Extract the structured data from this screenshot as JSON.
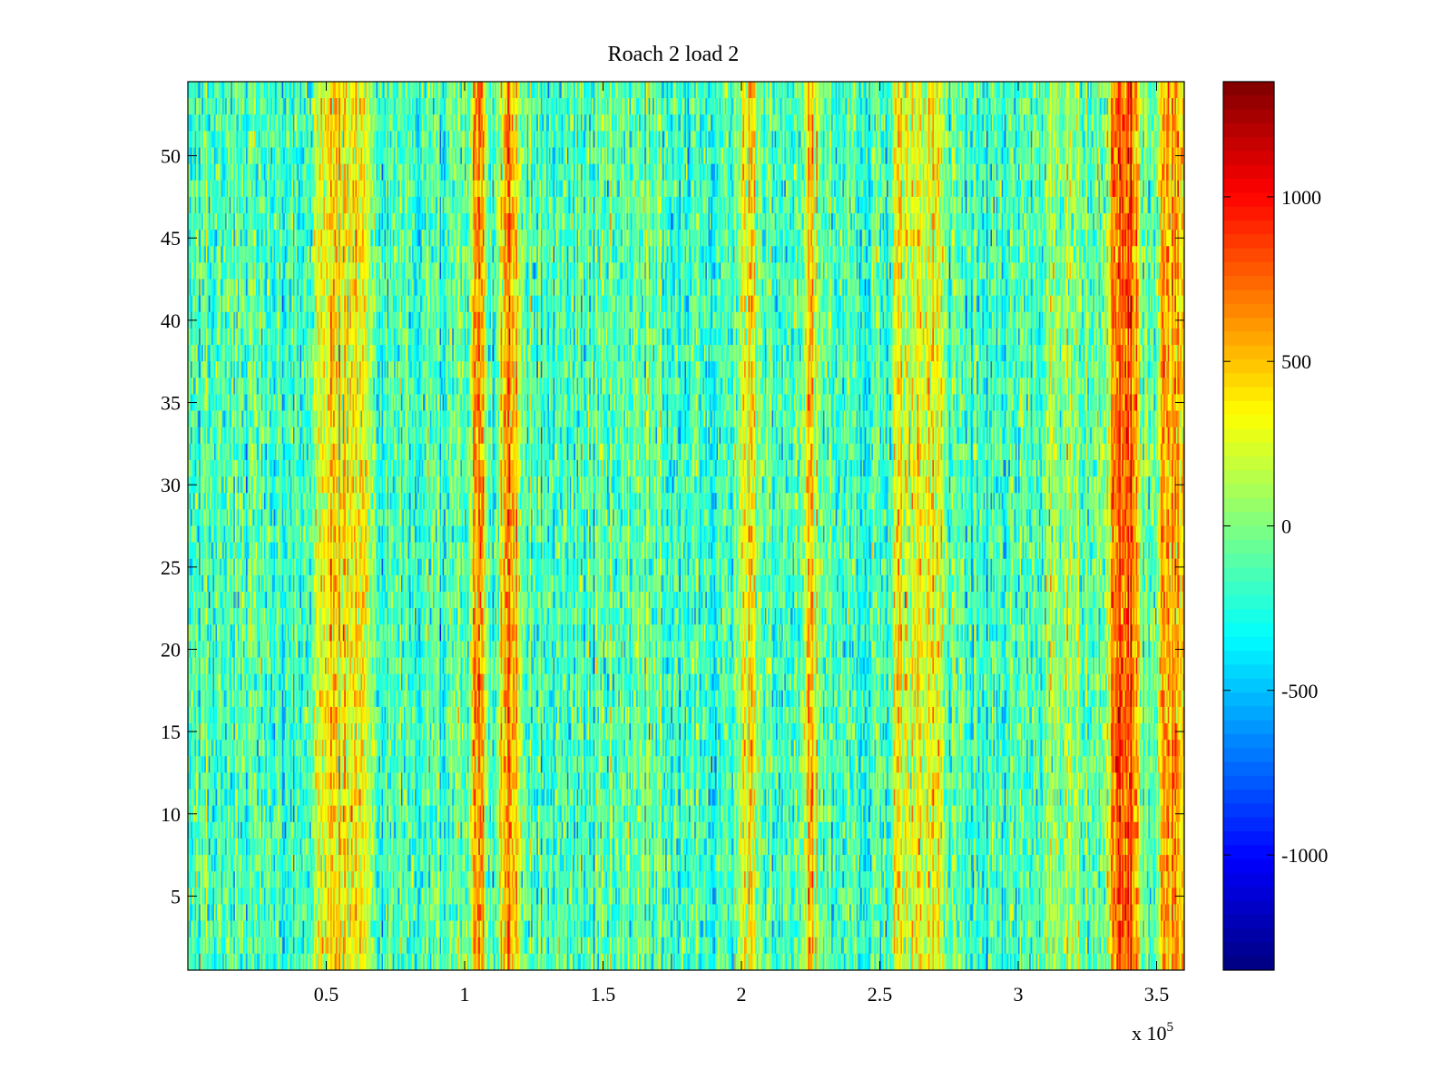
{
  "chart_data": {
    "type": "heatmap",
    "title": "Roach 2 load 2",
    "xlabel": "",
    "ylabel": "",
    "colormap": "jet",
    "x_range": [
      0,
      360000
    ],
    "y_range": [
      0.5,
      54.5
    ],
    "rows": 54,
    "columns": 720,
    "x_ticks": [
      {
        "value": 50000,
        "label": "0.5"
      },
      {
        "value": 100000,
        "label": "1"
      },
      {
        "value": 150000,
        "label": "1.5"
      },
      {
        "value": 200000,
        "label": "2"
      },
      {
        "value": 250000,
        "label": "2.5"
      },
      {
        "value": 300000,
        "label": "3"
      },
      {
        "value": 350000,
        "label": "3.5"
      }
    ],
    "x_exponent_label": "x 10",
    "x_exponent_power": "5",
    "y_ticks": [
      {
        "value": 5,
        "label": "5"
      },
      {
        "value": 10,
        "label": "10"
      },
      {
        "value": 15,
        "label": "15"
      },
      {
        "value": 20,
        "label": "20"
      },
      {
        "value": 25,
        "label": "25"
      },
      {
        "value": 30,
        "label": "30"
      },
      {
        "value": 35,
        "label": "35"
      },
      {
        "value": 40,
        "label": "40"
      },
      {
        "value": 45,
        "label": "45"
      },
      {
        "value": 50,
        "label": "50"
      }
    ],
    "colorbar": {
      "min": -1350,
      "max": 1350,
      "ticks": [
        {
          "value": 1000,
          "label": "1000"
        },
        {
          "value": 500,
          "label": "500"
        },
        {
          "value": 0,
          "label": "0"
        },
        {
          "value": -500,
          "label": "-500"
        },
        {
          "value": -1000,
          "label": "-1000"
        }
      ]
    },
    "baseline_value": -150,
    "noise_amplitude": 300,
    "bands": [
      {
        "x_start": 48000,
        "x_end": 64000,
        "level": 520
      },
      {
        "x_start": 104000,
        "x_end": 106000,
        "level": 800
      },
      {
        "x_start": 114000,
        "x_end": 118000,
        "level": 700
      },
      {
        "x_start": 200000,
        "x_end": 204000,
        "level": 450
      },
      {
        "x_start": 224000,
        "x_end": 226000,
        "level": 600
      },
      {
        "x_start": 256000,
        "x_end": 272000,
        "level": 420
      },
      {
        "x_start": 310000,
        "x_end": 320000,
        "level": 250
      },
      {
        "x_start": 334000,
        "x_end": 342000,
        "level": 900
      },
      {
        "x_start": 352000,
        "x_end": 360000,
        "level": 750
      }
    ]
  }
}
